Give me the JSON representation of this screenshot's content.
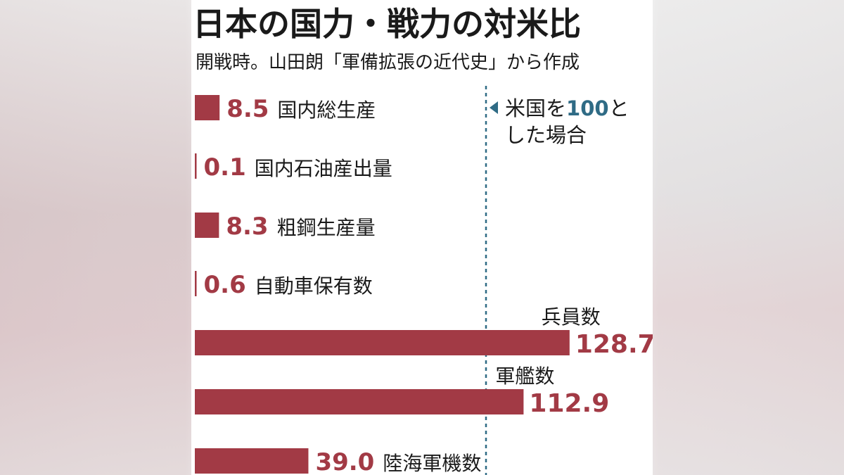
{
  "title": "日本の国力・戦力の対米比",
  "subtitle": "開戦時。山田朗「軍備拡張の近代史」から作成",
  "reference_note": {
    "line1_prefix": "米国を",
    "line1_value": "100",
    "line1_suffix": "と",
    "line2": "した場合"
  },
  "colors": {
    "bar": "#a23a45",
    "value_text": "#a23a45",
    "label_text": "#1a1a1a",
    "reference_line": "#2f6b85",
    "reference_value": "#2f6b85"
  },
  "chart_data": {
    "type": "bar",
    "orientation": "horizontal",
    "title": "日本の国力・戦力の対米比",
    "subtitle": "開戦時。山田朗「軍備拡張の近代史」から作成",
    "reference_value": 100,
    "categories": [
      "国内総生産",
      "国内石油産出量",
      "粗鋼生産量",
      "自動車保有数",
      "兵員数",
      "軍艦数",
      "陸海軍機数"
    ],
    "values": [
      8.5,
      0.1,
      8.3,
      0.6,
      128.7,
      112.9,
      39.0
    ],
    "value_labels": [
      "8.5",
      "0.1",
      "8.3",
      "0.6",
      "128.7",
      "112.9",
      "39.0"
    ],
    "xlim": [
      0,
      100
    ]
  }
}
